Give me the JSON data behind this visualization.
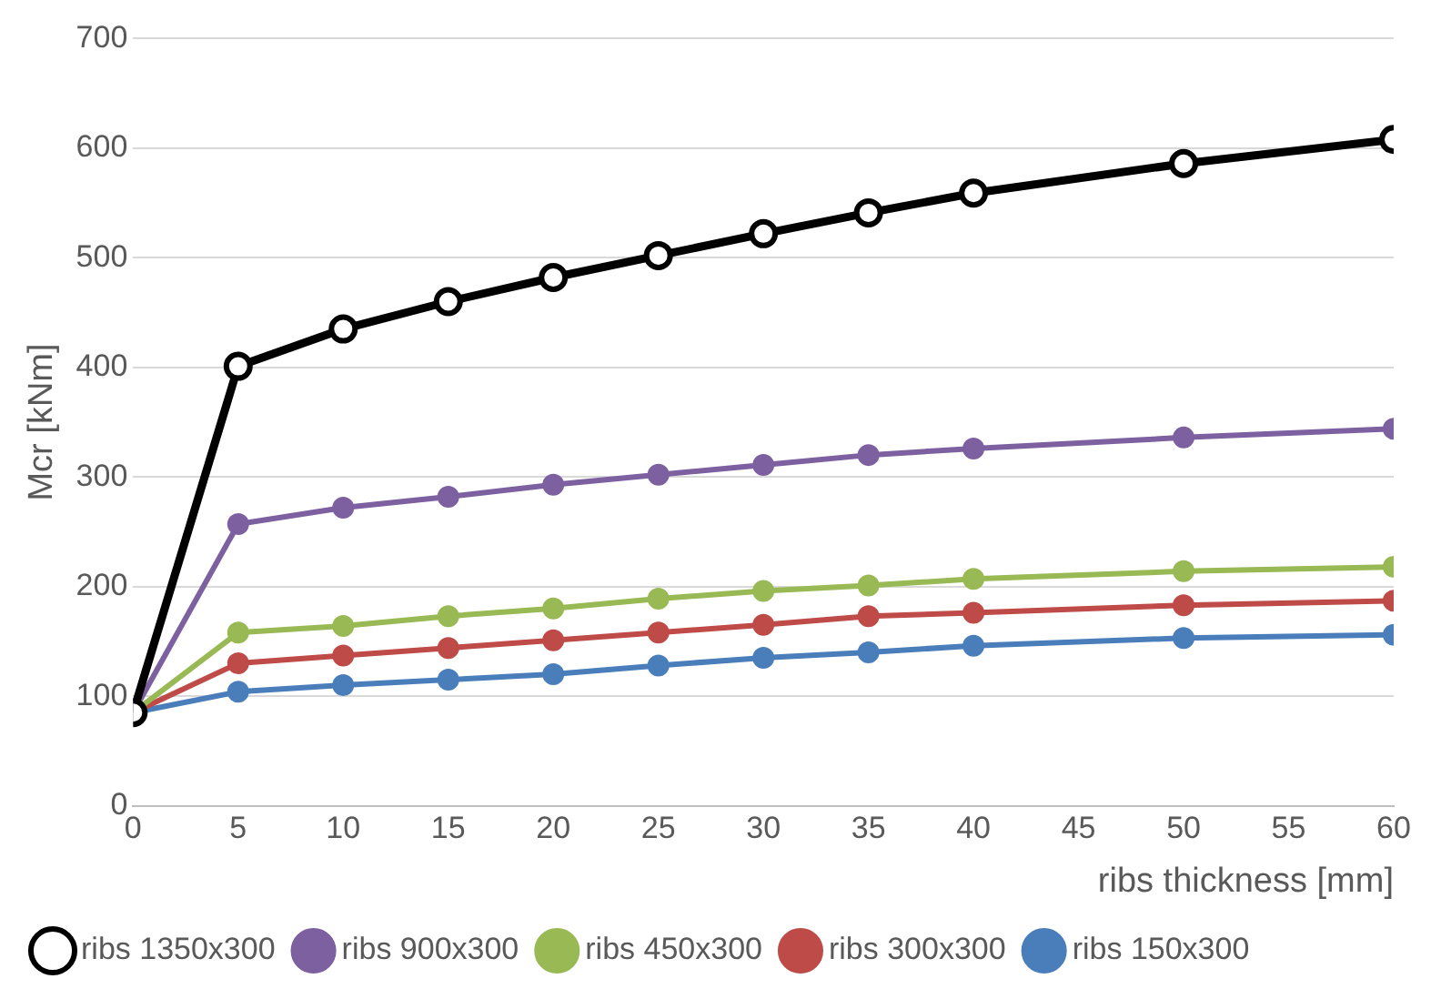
{
  "chart_data": {
    "type": "line",
    "xlabel": "ribs thickness [mm]",
    "ylabel": "Mcr [kNm]",
    "x": [
      0,
      5,
      10,
      15,
      20,
      25,
      30,
      35,
      40,
      50,
      60
    ],
    "xlim": [
      0,
      60
    ],
    "xticks": [
      0,
      5,
      10,
      15,
      20,
      25,
      30,
      35,
      40,
      45,
      50,
      55,
      60
    ],
    "ylim": [
      0,
      700
    ],
    "yticks": [
      0,
      100,
      200,
      300,
      400,
      500,
      600,
      700
    ],
    "grid": "y",
    "legend": "bottom",
    "marker": "circle",
    "line_style": "solid",
    "series": [
      {
        "name": "ribs 150x300",
        "color": "#4a7ebb",
        "values": [
          85,
          104,
          110,
          115,
          120,
          128,
          135,
          140,
          146,
          153,
          156
        ]
      },
      {
        "name": "ribs 300x300",
        "color": "#be4b48",
        "values": [
          85,
          130,
          137,
          144,
          151,
          158,
          165,
          173,
          176,
          183,
          187
        ]
      },
      {
        "name": "ribs 450x300",
        "color": "#98b954",
        "values": [
          85,
          158,
          164,
          173,
          180,
          189,
          196,
          201,
          207,
          214,
          218
        ]
      },
      {
        "name": "ribs 900x300",
        "color": "#7d60a0",
        "values": [
          85,
          257,
          272,
          282,
          293,
          302,
          311,
          320,
          326,
          336,
          344
        ]
      },
      {
        "name": "ribs 1350x300",
        "color": "#000000",
        "values": [
          85,
          401,
          435,
          460,
          482,
          502,
          522,
          541,
          559,
          586,
          608
        ]
      }
    ]
  }
}
